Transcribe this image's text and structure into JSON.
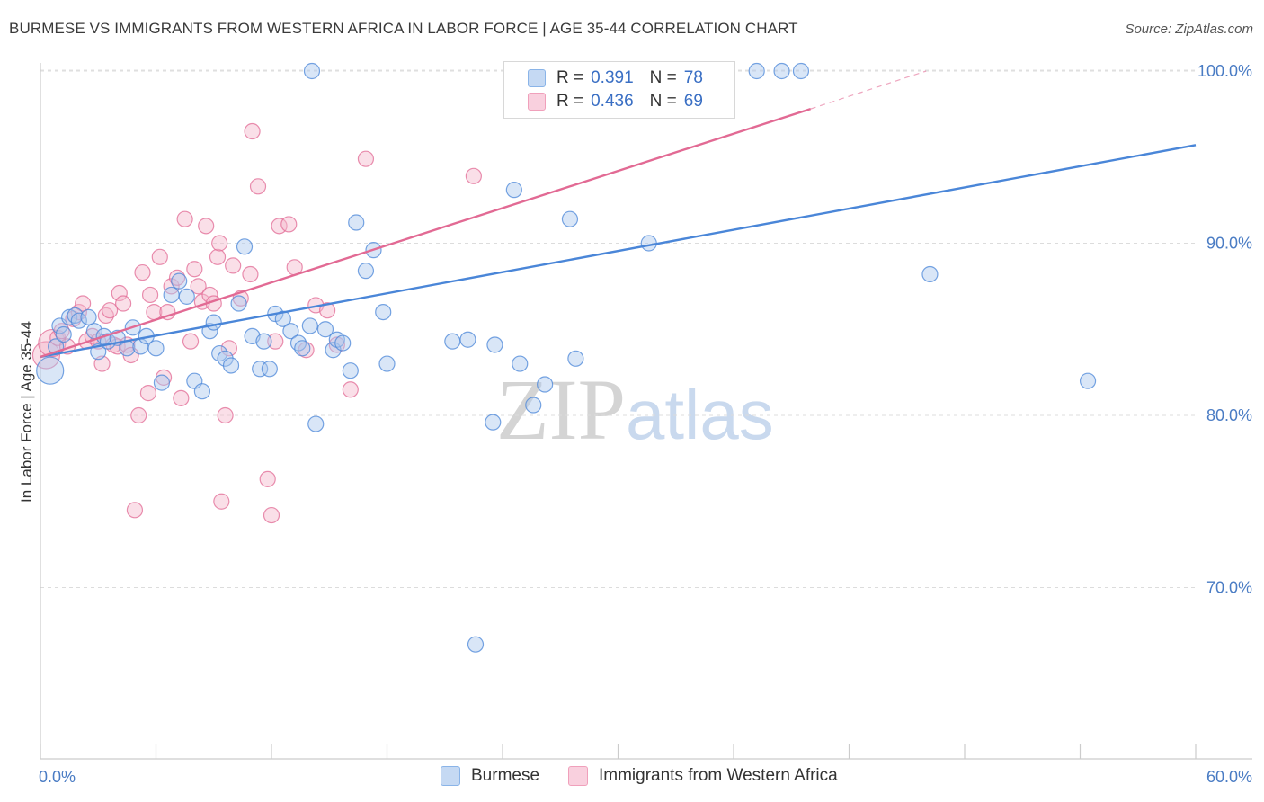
{
  "title": "BURMESE VS IMMIGRANTS FROM WESTERN AFRICA IN LABOR FORCE | AGE 35-44 CORRELATION CHART",
  "source": "Source: ZipAtlas.com",
  "watermark": {
    "zip": "ZIP",
    "atlas": "atlas"
  },
  "legend": {
    "r_label": "R =",
    "n_label": "N =",
    "items": [
      {
        "name": "Burmese",
        "r": "0.391",
        "n": "78",
        "color": "#8ab4e8",
        "fill": "#c5d9f3"
      },
      {
        "name": "Immigrants from Western Africa",
        "r": "0.436",
        "n": "69",
        "color": "#f0a0bb",
        "fill": "#f9d0de"
      }
    ]
  },
  "chart_data": {
    "type": "scatter",
    "title": "BURMESE VS IMMIGRANTS FROM WESTERN AFRICA IN LABOR FORCE | AGE 35-44 CORRELATION CHART",
    "xlabel": "",
    "ylabel": "In Labor Force | Age 35-44",
    "xlim": [
      0,
      60
    ],
    "ylim": [
      60,
      101
    ],
    "x_tick_labels": [
      "0.0%",
      "60.0%"
    ],
    "y_ticks": [
      70,
      80,
      90,
      100
    ],
    "y_tick_labels": [
      "70.0%",
      "80.0%",
      "90.0%",
      "100.0%"
    ],
    "grid": true,
    "legend_position": "top-center",
    "series": [
      {
        "name": "Burmese",
        "color": "#4a86d8",
        "fill": "#aac8ee",
        "trend": {
          "x": [
            0,
            60
          ],
          "y": [
            83.4,
            95.7
          ]
        },
        "points": [
          [
            0.5,
            82.6
          ],
          [
            0.8,
            84.0
          ],
          [
            1.0,
            85.2
          ],
          [
            1.2,
            84.7
          ],
          [
            1.5,
            85.7
          ],
          [
            1.8,
            85.8
          ],
          [
            2.0,
            85.5
          ],
          [
            2.5,
            85.7
          ],
          [
            2.8,
            84.9
          ],
          [
            3.0,
            83.7
          ],
          [
            3.3,
            84.6
          ],
          [
            3.5,
            84.3
          ],
          [
            4.0,
            84.5
          ],
          [
            4.5,
            83.9
          ],
          [
            4.8,
            85.1
          ],
          [
            5.2,
            84.0
          ],
          [
            5.5,
            84.6
          ],
          [
            6.0,
            83.9
          ],
          [
            6.3,
            81.9
          ],
          [
            6.8,
            87.0
          ],
          [
            7.2,
            87.8
          ],
          [
            7.6,
            86.9
          ],
          [
            8.0,
            82.0
          ],
          [
            8.4,
            81.4
          ],
          [
            8.8,
            84.9
          ],
          [
            9.0,
            85.4
          ],
          [
            9.3,
            83.6
          ],
          [
            9.6,
            83.3
          ],
          [
            9.9,
            82.9
          ],
          [
            10.3,
            86.5
          ],
          [
            10.6,
            89.8
          ],
          [
            11.0,
            84.6
          ],
          [
            11.4,
            82.7
          ],
          [
            11.6,
            84.3
          ],
          [
            11.9,
            82.7
          ],
          [
            12.2,
            85.9
          ],
          [
            12.6,
            85.6
          ],
          [
            13.0,
            84.9
          ],
          [
            13.4,
            84.2
          ],
          [
            13.6,
            83.9
          ],
          [
            14.0,
            85.2
          ],
          [
            14.3,
            79.5
          ],
          [
            14.8,
            85.0
          ],
          [
            15.2,
            83.8
          ],
          [
            15.4,
            84.4
          ],
          [
            15.7,
            84.2
          ],
          [
            16.1,
            82.6
          ],
          [
            16.4,
            91.2
          ],
          [
            16.9,
            88.4
          ],
          [
            17.3,
            89.6
          ],
          [
            17.8,
            86.0
          ],
          [
            18.0,
            83.0
          ],
          [
            21.4,
            84.3
          ],
          [
            22.2,
            84.4
          ],
          [
            22.6,
            66.7
          ],
          [
            23.5,
            79.6
          ],
          [
            23.6,
            84.1
          ],
          [
            24.6,
            93.1
          ],
          [
            24.9,
            83.0
          ],
          [
            25.6,
            80.6
          ],
          [
            26.2,
            81.8
          ],
          [
            27.5,
            91.4
          ],
          [
            27.8,
            83.3
          ],
          [
            31.6,
            90.0
          ],
          [
            46.2,
            88.2
          ],
          [
            54.4,
            82.0
          ],
          [
            14.1,
            100.0
          ],
          [
            24.8,
            100.0
          ],
          [
            25.9,
            100.0
          ],
          [
            37.2,
            100.0
          ],
          [
            38.5,
            100.0
          ],
          [
            39.5,
            100.0
          ]
        ]
      },
      {
        "name": "Immigrants from Western Africa",
        "color": "#e26a94",
        "fill": "#f5b8cc",
        "trend": {
          "x": [
            0,
            40
          ],
          "y": [
            83.4,
            97.8
          ]
        },
        "trend_extension": {
          "x": [
            40,
            46
          ],
          "y": [
            97.8,
            100.0
          ]
        },
        "points": [
          [
            0.3,
            83.5
          ],
          [
            0.6,
            84.2
          ],
          [
            0.9,
            84.5
          ],
          [
            1.1,
            84.9
          ],
          [
            1.4,
            84.0
          ],
          [
            1.7,
            85.6
          ],
          [
            2.0,
            86.0
          ],
          [
            2.2,
            86.5
          ],
          [
            2.4,
            84.3
          ],
          [
            2.7,
            84.6
          ],
          [
            3.0,
            84.3
          ],
          [
            3.2,
            83.0
          ],
          [
            3.4,
            85.8
          ],
          [
            3.6,
            86.1
          ],
          [
            3.8,
            84.1
          ],
          [
            4.0,
            84.0
          ],
          [
            4.1,
            87.1
          ],
          [
            4.3,
            86.5
          ],
          [
            4.5,
            84.1
          ],
          [
            4.7,
            83.5
          ],
          [
            4.9,
            74.5
          ],
          [
            5.1,
            80.0
          ],
          [
            5.3,
            88.3
          ],
          [
            5.6,
            81.3
          ],
          [
            5.7,
            87.0
          ],
          [
            5.9,
            86.0
          ],
          [
            6.2,
            89.2
          ],
          [
            6.4,
            82.2
          ],
          [
            6.6,
            86.0
          ],
          [
            6.8,
            87.5
          ],
          [
            7.1,
            88.0
          ],
          [
            7.3,
            81.0
          ],
          [
            7.5,
            91.4
          ],
          [
            7.8,
            84.3
          ],
          [
            8.0,
            88.5
          ],
          [
            8.2,
            87.5
          ],
          [
            8.4,
            86.6
          ],
          [
            8.6,
            91.0
          ],
          [
            8.8,
            87.0
          ],
          [
            9.0,
            86.5
          ],
          [
            9.2,
            89.2
          ],
          [
            9.3,
            90.0
          ],
          [
            9.4,
            75.0
          ],
          [
            9.6,
            80.0
          ],
          [
            9.8,
            83.9
          ],
          [
            10.0,
            88.7
          ],
          [
            10.4,
            86.8
          ],
          [
            10.9,
            88.2
          ],
          [
            11.3,
            93.3
          ],
          [
            11.8,
            76.3
          ],
          [
            12.0,
            74.2
          ],
          [
            12.2,
            84.3
          ],
          [
            12.4,
            91.0
          ],
          [
            12.9,
            91.1
          ],
          [
            13.2,
            88.6
          ],
          [
            13.8,
            83.8
          ],
          [
            14.3,
            86.4
          ],
          [
            14.9,
            86.1
          ],
          [
            15.4,
            84.1
          ],
          [
            16.1,
            81.5
          ],
          [
            16.9,
            94.9
          ],
          [
            11.0,
            96.5
          ],
          [
            22.5,
            93.9
          ],
          [
            27.4,
            100.0
          ],
          [
            33.8,
            100.0
          ],
          [
            34.4,
            100.0
          ]
        ]
      }
    ]
  }
}
